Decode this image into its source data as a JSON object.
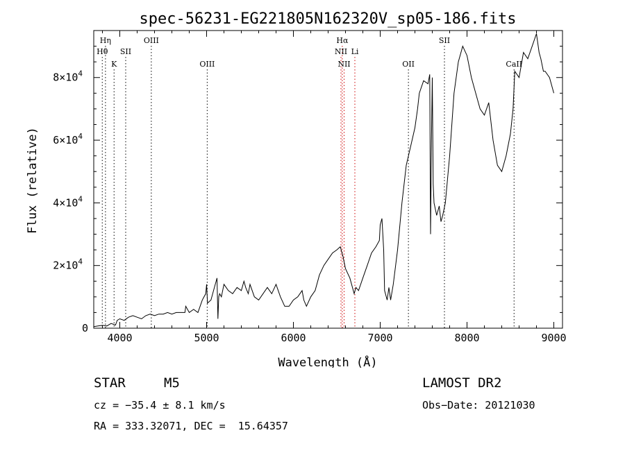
{
  "chart_data": {
    "type": "line",
    "title": "spec-56231-EG221805N162320V_sp05-186.fits",
    "xlabel": "Wavelength (Å)",
    "ylabel": "Flux (relative)",
    "xlim": [
      3700,
      9100
    ],
    "ylim": [
      0,
      95000
    ],
    "x_ticks": [
      4000,
      5000,
      6000,
      7000,
      8000,
      9000
    ],
    "x_tick_labels": [
      "4000",
      "5000",
      "6000",
      "7000",
      "8000",
      "9000"
    ],
    "y_ticks": [
      0,
      20000,
      40000,
      60000,
      80000
    ],
    "y_tick_labels": [
      {
        "mantissa": "0",
        "exp": ""
      },
      {
        "mantissa": "2×10",
        "exp": "4"
      },
      {
        "mantissa": "4×10",
        "exp": "4"
      },
      {
        "mantissa": "6×10",
        "exp": "4"
      },
      {
        "mantissa": "8×10",
        "exp": "4"
      }
    ],
    "grid": false,
    "series": [
      {
        "x": [
          3700,
          3750,
          3800,
          3850,
          3900,
          3950,
          3970,
          4000,
          4050,
          4100,
          4150,
          4200,
          4250,
          4300,
          4350,
          4400,
          4450,
          4500,
          4550,
          4600,
          4650,
          4700,
          4750,
          4760,
          4800,
          4850,
          4900,
          4950,
          4970,
          4990,
          5000,
          5010,
          5050,
          5080,
          5100,
          5120,
          5130,
          5140,
          5150,
          5170,
          5200,
          5250,
          5300,
          5350,
          5400,
          5430,
          5450,
          5480,
          5500,
          5550,
          5600,
          5650,
          5700,
          5750,
          5800,
          5850,
          5900,
          5950,
          6000,
          6050,
          6100,
          6120,
          6150,
          6200,
          6250,
          6300,
          6350,
          6400,
          6450,
          6500,
          6540,
          6570,
          6600,
          6650,
          6700,
          6720,
          6750,
          6800,
          6850,
          6900,
          6950,
          6990,
          7000,
          7020,
          7040,
          7050,
          7080,
          7100,
          7120,
          7150,
          7200,
          7250,
          7300,
          7350,
          7400,
          7430,
          7450,
          7500,
          7550,
          7570,
          7580,
          7590,
          7600,
          7610,
          7620,
          7650,
          7680,
          7700,
          7720,
          7750,
          7800,
          7850,
          7900,
          7950,
          8000,
          8050,
          8100,
          8150,
          8200,
          8250,
          8300,
          8350,
          8400,
          8450,
          8500,
          8530,
          8550,
          8600,
          8650,
          8700,
          8750,
          8800,
          8830,
          8850,
          8880,
          8900,
          8950,
          9000
        ],
        "y": [
          500,
          700,
          900,
          700,
          1500,
          1000,
          2500,
          3000,
          2500,
          3500,
          4000,
          3500,
          3000,
          4000,
          4500,
          4000,
          4500,
          4500,
          5000,
          4500,
          5000,
          5000,
          5000,
          7000,
          5000,
          6000,
          5000,
          9000,
          10000,
          11000,
          14000,
          8000,
          9000,
          12000,
          14000,
          16000,
          3000,
          10000,
          11000,
          10000,
          14000,
          12000,
          11000,
          13000,
          12000,
          15000,
          13000,
          11000,
          14000,
          10000,
          9000,
          11000,
          13000,
          11000,
          14000,
          10000,
          7000,
          7000,
          9000,
          10000,
          12000,
          9000,
          7000,
          10000,
          12000,
          17000,
          20000,
          22000,
          24000,
          25000,
          26000,
          23000,
          19000,
          16000,
          11000,
          13000,
          12000,
          16000,
          20000,
          24000,
          26000,
          28000,
          33000,
          35000,
          25000,
          12000,
          9000,
          13000,
          9000,
          14000,
          25000,
          40000,
          52000,
          58000,
          64000,
          70000,
          75000,
          79000,
          78000,
          81000,
          30000,
          60000,
          80000,
          46000,
          40000,
          36000,
          39000,
          34000,
          36000,
          40000,
          55000,
          75000,
          85000,
          90000,
          87000,
          80000,
          75000,
          70000,
          68000,
          72000,
          60000,
          52000,
          50000,
          55000,
          62000,
          70000,
          82000,
          80000,
          88000,
          86000,
          90000,
          94000,
          88000,
          86000,
          82000,
          82000,
          80000,
          75000
        ]
      }
    ],
    "line_markers": [
      {
        "label": "Hη",
        "x": 3835,
        "row": 1,
        "color": "#000000"
      },
      {
        "label": "Hθ",
        "x": 3798,
        "row": 2,
        "color": "#000000"
      },
      {
        "label": "K",
        "x": 3934,
        "row": 3,
        "color": "#000000"
      },
      {
        "label": "SII",
        "x": 4068,
        "row": 2,
        "color": "#000000"
      },
      {
        "label": "OIII",
        "x": 4363,
        "row": 1,
        "color": "#000000"
      },
      {
        "label": "OIII",
        "x": 5007,
        "row": 3,
        "color": "#000000"
      },
      {
        "label": "Hα",
        "x": 6563,
        "row": 1,
        "color": "#cc0000"
      },
      {
        "label": "NII",
        "x": 6548,
        "row": 2,
        "color": "#cc0000"
      },
      {
        "label": "Li",
        "x": 6708,
        "row": 2,
        "color": "#cc0000"
      },
      {
        "label": "NII",
        "x": 6584,
        "row": 3,
        "color": "#cc0000"
      },
      {
        "label": "OII",
        "x": 7325,
        "row": 3,
        "color": "#000000"
      },
      {
        "label": "SII",
        "x": 7740,
        "row": 1,
        "color": "#000000"
      },
      {
        "label": "CaII",
        "x": 8542,
        "row": 3,
        "color": "#000000"
      }
    ]
  },
  "info": {
    "class": "STAR",
    "subclass": "M5",
    "survey": "LAMOST DR2",
    "cz": "cz = −35.4 ± 8.1 km/s",
    "obs_date": "Obs−Date: 20121030",
    "radec": "RA = 333.32071, DEC =  15.64357"
  }
}
